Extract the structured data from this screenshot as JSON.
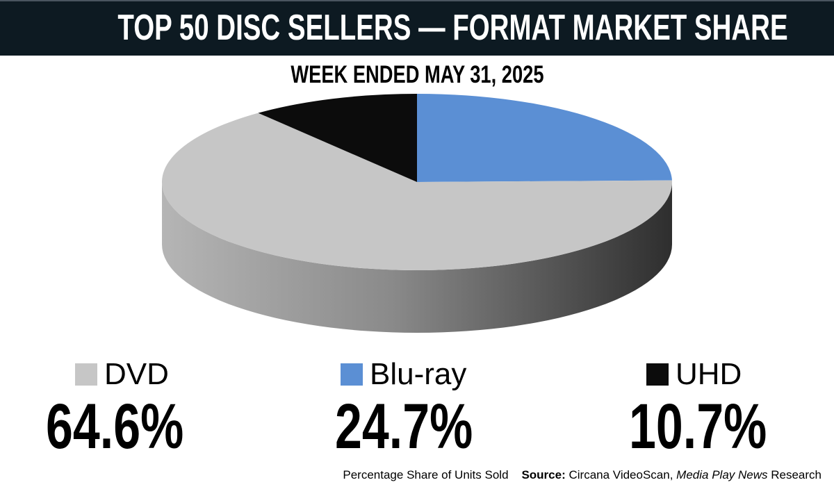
{
  "header": {
    "title": "TOP 50 DISC SELLERS — FORMAT MARKET SHARE",
    "subtitle": "WEEK ENDED MAY 31, 2025"
  },
  "chart_data": {
    "type": "pie",
    "style": "3d",
    "title": "TOP 50 DISC SELLERS — FORMAT MARKET SHARE",
    "subtitle": "WEEK ENDED MAY 31, 2025",
    "start": "12 o'clock, clockwise",
    "slices": [
      {
        "label": "Blu-ray",
        "value": 24.7,
        "display": "24.7%",
        "color": "#5b8fd4"
      },
      {
        "label": "DVD",
        "value": 64.6,
        "display": "64.6%",
        "color": "#c6c6c6"
      },
      {
        "label": "UHD",
        "value": 10.7,
        "display": "10.7%",
        "color": "#0c0c0c"
      }
    ],
    "legend_placement": "bottom"
  },
  "footer": {
    "note": "Percentage Share of Units Sold",
    "source_label": "Source:",
    "source_text": "Circana VideoScan,",
    "source_pub": "Media Play News",
    "source_tail": "Research"
  }
}
